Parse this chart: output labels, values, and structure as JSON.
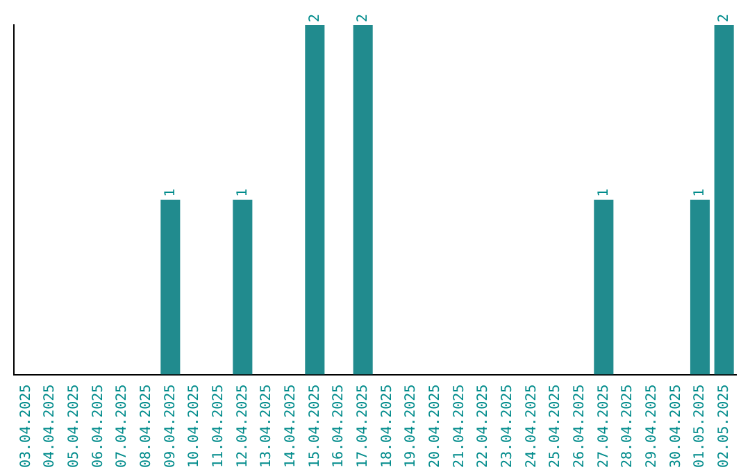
{
  "chart_data": {
    "type": "bar",
    "categories": [
      "03.04.2025",
      "04.04.2025",
      "05.04.2025",
      "06.04.2025",
      "07.04.2025",
      "08.04.2025",
      "09.04.2025",
      "10.04.2025",
      "11.04.2025",
      "12.04.2025",
      "13.04.2025",
      "14.04.2025",
      "15.04.2025",
      "16.04.2025",
      "17.04.2025",
      "18.04.2025",
      "19.04.2025",
      "20.04.2025",
      "21.04.2025",
      "22.04.2025",
      "23.04.2025",
      "24.04.2025",
      "25.04.2025",
      "26.04.2025",
      "27.04.2025",
      "28.04.2025",
      "29.04.2025",
      "30.04.2025",
      "01.05.2025",
      "02.05.2025"
    ],
    "values": [
      0,
      0,
      0,
      0,
      0,
      0,
      1,
      0,
      0,
      1,
      0,
      0,
      2,
      0,
      2,
      0,
      0,
      0,
      0,
      0,
      0,
      0,
      0,
      0,
      1,
      0,
      0,
      0,
      1,
      2
    ],
    "value_labels": [
      null,
      null,
      null,
      null,
      null,
      null,
      "1",
      null,
      null,
      "1",
      null,
      null,
      "2",
      null,
      "2",
      null,
      null,
      null,
      null,
      null,
      null,
      null,
      null,
      null,
      "1",
      null,
      null,
      null,
      "1",
      "2"
    ],
    "color": "#218b8e",
    "grid": false,
    "legend": false
  }
}
